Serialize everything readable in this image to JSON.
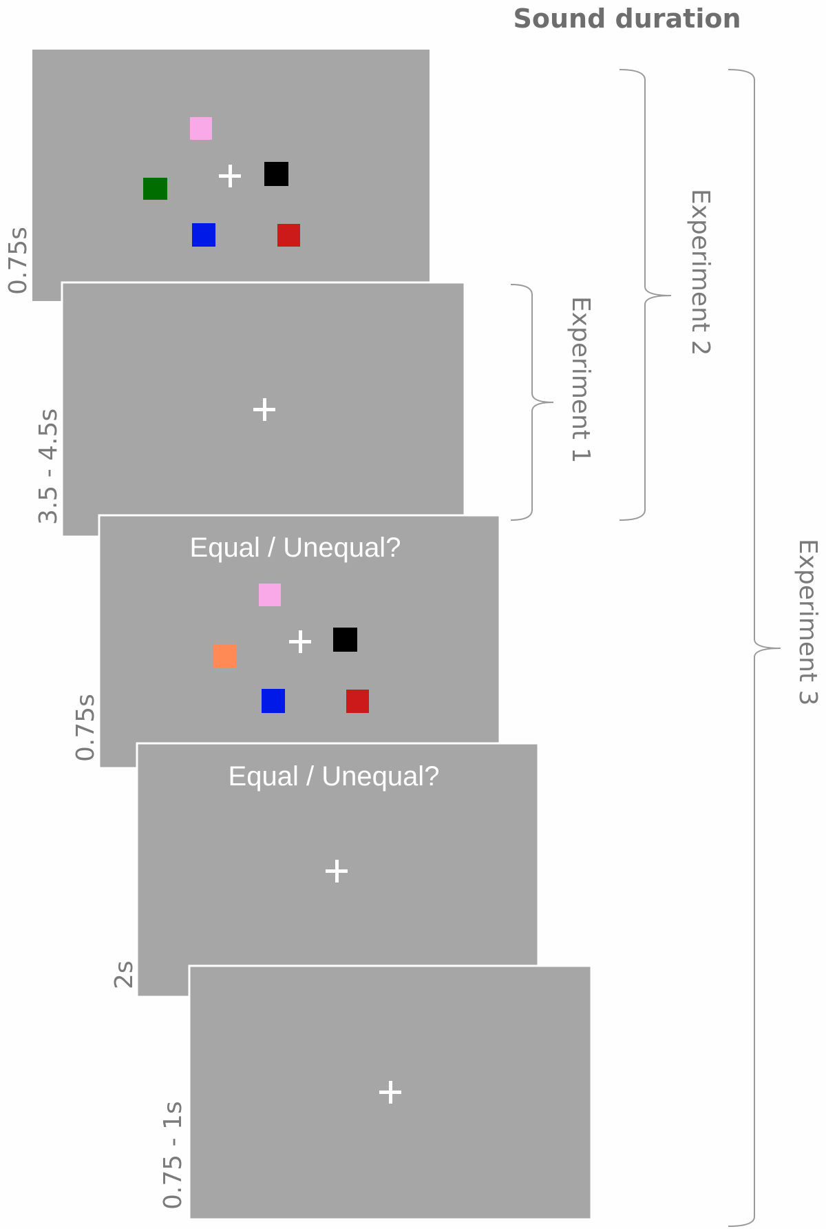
{
  "title": "Sound duration",
  "colors": {
    "screen_bg": "#a6a6a6",
    "text": "#7a7a7a",
    "fixation": "#ffffff"
  },
  "screens": [
    {
      "duration": "0.75s",
      "prompt": "",
      "items": [
        {
          "color": "#f9a8e8",
          "name": "pink"
        },
        {
          "color": "#006d00",
          "name": "green"
        },
        {
          "color": "#000000",
          "name": "black"
        },
        {
          "color": "#0019e8",
          "name": "blue"
        },
        {
          "color": "#cc1a1a",
          "name": "red"
        }
      ]
    },
    {
      "duration": "3.5 - 4.5s",
      "prompt": ""
    },
    {
      "duration": "0.75s",
      "prompt": "Equal / Unequal?",
      "items": [
        {
          "color": "#f9a8e8",
          "name": "pink"
        },
        {
          "color": "#ff8a55",
          "name": "orange"
        },
        {
          "color": "#000000",
          "name": "black"
        },
        {
          "color": "#0019e8",
          "name": "blue"
        },
        {
          "color": "#cc1a1a",
          "name": "red"
        }
      ]
    },
    {
      "duration": "2s",
      "prompt": "Equal / Unequal?"
    },
    {
      "duration": "0.75 - 1s",
      "prompt": ""
    }
  ],
  "experiments": [
    {
      "label": "Experiment 1"
    },
    {
      "label": "Experiment 2"
    },
    {
      "label": "Experiment 3"
    }
  ]
}
